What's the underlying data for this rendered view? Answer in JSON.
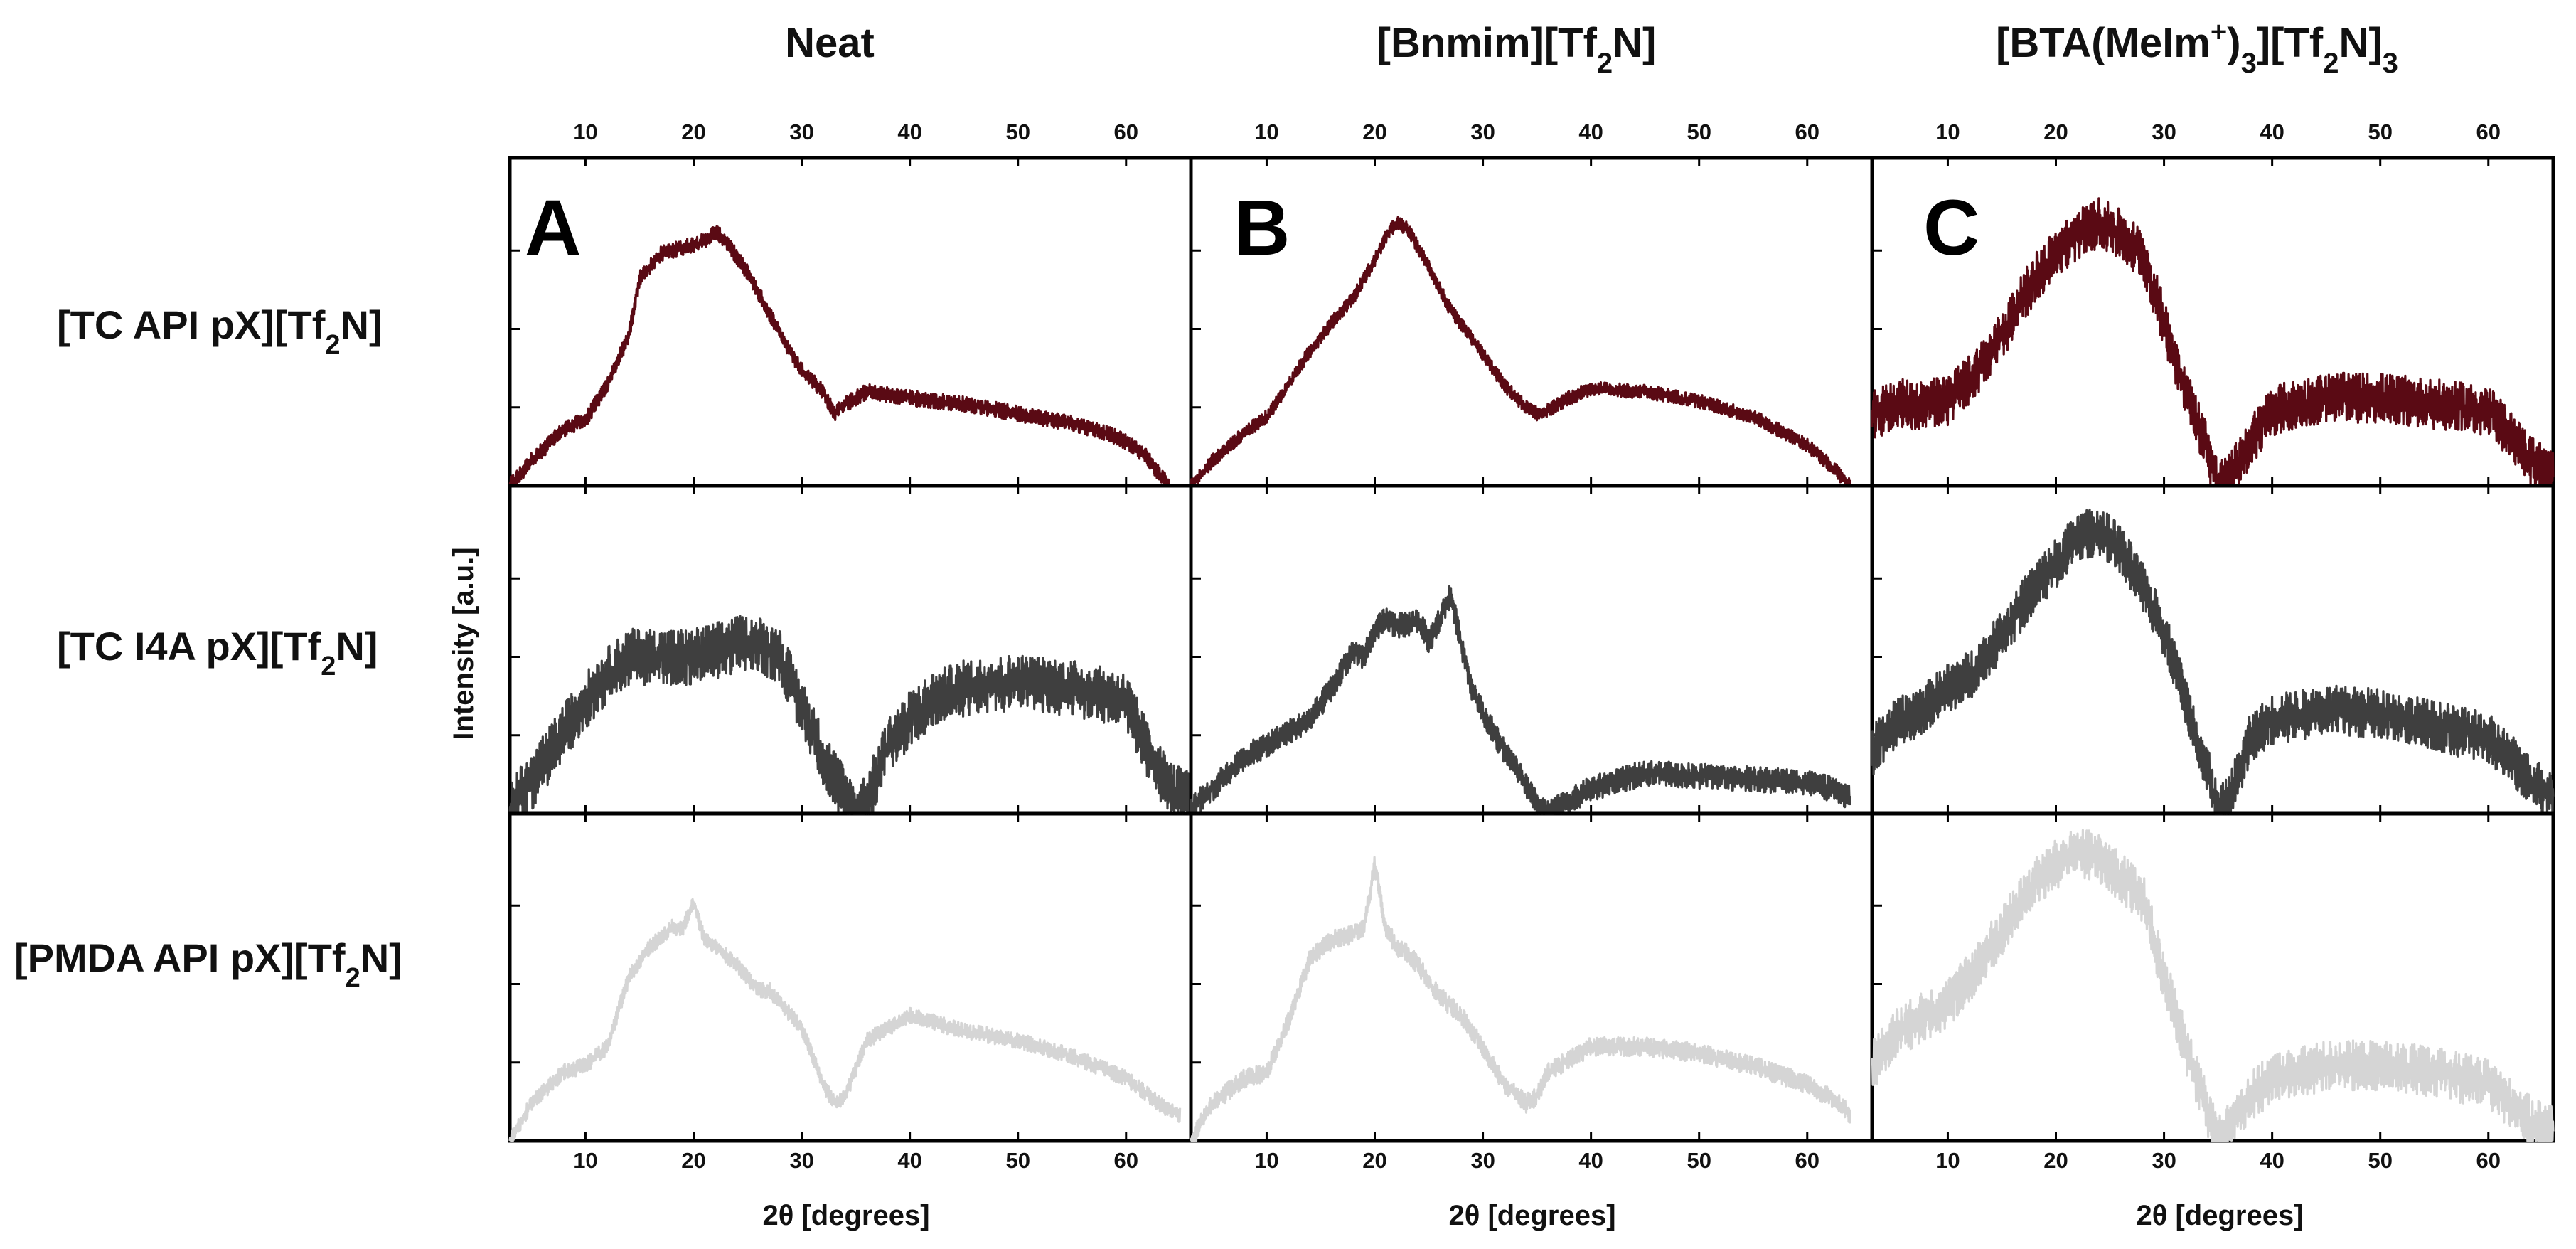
{
  "chart_data": {
    "type": "line",
    "layout": "3x3 small multiples, powder X-ray diffraction patterns",
    "columns": [
      {
        "title": "Neat",
        "panel_letter": "A"
      },
      {
        "title_parts": [
          "[Bnmim][Tf",
          "2",
          "N]"
        ],
        "panel_letter": "B"
      },
      {
        "title_parts": [
          "[BTA(MeIm",
          "+",
          ")",
          "3",
          "][Tf",
          "2",
          "N]",
          "3"
        ],
        "panel_letter": "C"
      }
    ],
    "rows": [
      {
        "label_parts": [
          "[TC API pX][Tf",
          "2",
          "N]"
        ],
        "color": "#5a0a14"
      },
      {
        "label_parts": [
          "[TC I4A pX][Tf",
          "2",
          "N]"
        ],
        "color": "#3f3f3f"
      },
      {
        "label_parts": [
          "[PMDA API pX][Tf",
          "2",
          "N]"
        ],
        "color": "#d5d5d5"
      }
    ],
    "xlabel": "2θ [degrees]",
    "ylabel": "Intensity [a.u.]",
    "xlim": [
      3,
      66
    ],
    "ylim": [
      0,
      100
    ],
    "xticks": [
      "10",
      "20",
      "30",
      "40",
      "50",
      "60"
    ],
    "xtick_values": [
      10,
      20,
      30,
      40,
      50,
      60
    ],
    "ytick_values": [
      25,
      50,
      75
    ],
    "panels": [
      {
        "row": 0,
        "col": 0,
        "color": "#5a0a14",
        "noise": 2.5,
        "x": [
          3,
          5,
          8,
          10,
          12,
          14,
          15,
          17,
          19,
          21,
          22,
          23,
          25,
          27,
          29,
          30,
          32,
          33,
          34,
          36,
          40,
          45,
          50,
          55,
          58,
          60,
          62,
          63,
          64
        ],
        "y": [
          0,
          8,
          18,
          21,
          32,
          48,
          66,
          74,
          76,
          78,
          81,
          78,
          68,
          55,
          42,
          37,
          30,
          23,
          26,
          30,
          28,
          26,
          23,
          20,
          17,
          14,
          9,
          4,
          0
        ]
      },
      {
        "row": 0,
        "col": 1,
        "color": "#5a0a14",
        "noise": 2.2,
        "x": [
          3,
          5,
          8,
          10,
          12,
          14,
          16,
          18,
          20,
          21,
          22,
          23,
          25,
          27,
          30,
          32,
          34,
          35,
          36,
          38,
          40,
          45,
          50,
          55,
          60,
          62,
          64
        ],
        "y": [
          0,
          8,
          17,
          22,
          32,
          43,
          52,
          60,
          72,
          79,
          84,
          82,
          70,
          56,
          42,
          32,
          25,
          23,
          24,
          28,
          31,
          30,
          27,
          22,
          13,
          7,
          0
        ]
      },
      {
        "row": 0,
        "col": 2,
        "color": "#5a0a14",
        "noise": 8,
        "x": [
          3,
          5,
          8,
          10,
          12,
          14,
          16,
          18,
          20,
          22,
          24,
          26,
          28,
          30,
          32,
          34,
          35,
          36,
          38,
          40,
          45,
          50,
          55,
          60,
          62,
          64,
          66
        ],
        "y": [
          22,
          26,
          26,
          27,
          34,
          42,
          54,
          66,
          74,
          80,
          84,
          80,
          74,
          52,
          30,
          12,
          0,
          2,
          14,
          24,
          28,
          28,
          26,
          24,
          16,
          8,
          3
        ]
      },
      {
        "row": 1,
        "col": 0,
        "color": "#3f3f3f",
        "noise": 9,
        "x": [
          3,
          5,
          8,
          10,
          12,
          14,
          16,
          18,
          20,
          22,
          24,
          26,
          28,
          30,
          32,
          34,
          35,
          36,
          38,
          40,
          42,
          45,
          50,
          55,
          60,
          62,
          64,
          66
        ],
        "y": [
          2,
          10,
          26,
          36,
          44,
          50,
          50,
          50,
          50,
          52,
          54,
          54,
          50,
          34,
          18,
          6,
          0,
          4,
          22,
          30,
          36,
          40,
          42,
          40,
          36,
          20,
          8,
          4
        ]
      },
      {
        "row": 1,
        "col": 1,
        "color": "#3f3f3f",
        "noise": 4,
        "x": [
          3,
          5,
          8,
          10,
          12,
          14,
          16,
          17,
          18,
          19,
          20,
          21,
          22,
          23,
          24,
          25,
          26,
          27,
          28,
          29,
          30,
          32,
          34,
          35,
          36,
          38,
          40,
          45,
          50,
          55,
          60,
          62,
          64
        ],
        "y": [
          2,
          8,
          18,
          22,
          26,
          30,
          40,
          46,
          52,
          50,
          58,
          62,
          60,
          60,
          62,
          55,
          62,
          70,
          54,
          40,
          32,
          20,
          9,
          3,
          0,
          4,
          8,
          13,
          12,
          11,
          10,
          8,
          5
        ]
      },
      {
        "row": 1,
        "col": 2,
        "color": "#3f3f3f",
        "noise": 8,
        "x": [
          3,
          5,
          8,
          10,
          12,
          14,
          16,
          18,
          20,
          22,
          24,
          26,
          28,
          30,
          32,
          34,
          35,
          36,
          38,
          40,
          45,
          50,
          55,
          60,
          62,
          64,
          66
        ],
        "y": [
          20,
          28,
          34,
          40,
          44,
          52,
          62,
          72,
          80,
          88,
          90,
          84,
          72,
          58,
          36,
          14,
          0,
          4,
          24,
          30,
          33,
          32,
          28,
          24,
          18,
          10,
          6
        ]
      },
      {
        "row": 2,
        "col": 0,
        "color": "#d5d5d5",
        "noise": 2.5,
        "x": [
          3,
          5,
          8,
          10,
          12,
          14,
          16,
          18,
          19,
          20,
          21,
          22,
          24,
          26,
          27,
          28,
          30,
          32,
          33,
          34,
          36,
          38,
          40,
          45,
          50,
          55,
          60,
          63,
          65
        ],
        "y": [
          0,
          12,
          22,
          24,
          30,
          52,
          62,
          68,
          68,
          76,
          64,
          62,
          56,
          48,
          48,
          44,
          36,
          18,
          12,
          14,
          32,
          36,
          40,
          35,
          32,
          27,
          20,
          12,
          8
        ]
      },
      {
        "row": 2,
        "col": 1,
        "color": "#d5d5d5",
        "noise": 3,
        "x": [
          3,
          5,
          8,
          10,
          12,
          14,
          16,
          18,
          19,
          20,
          21,
          22,
          23,
          24,
          26,
          28,
          30,
          32,
          34,
          35,
          36,
          38,
          40,
          45,
          50,
          55,
          60,
          63,
          64
        ],
        "y": [
          0,
          12,
          20,
          22,
          38,
          58,
          64,
          66,
          68,
          88,
          68,
          62,
          60,
          56,
          46,
          40,
          30,
          18,
          12,
          14,
          22,
          26,
          30,
          30,
          28,
          24,
          18,
          12,
          8
        ]
      },
      {
        "row": 2,
        "col": 2,
        "color": "#d5d5d5",
        "noise": 8,
        "x": [
          3,
          5,
          8,
          10,
          12,
          14,
          16,
          18,
          20,
          22,
          24,
          26,
          28,
          30,
          32,
          34,
          35,
          36,
          38,
          40,
          45,
          50,
          55,
          60,
          62,
          64,
          66
        ],
        "y": [
          24,
          34,
          40,
          44,
          52,
          62,
          72,
          82,
          88,
          92,
          90,
          84,
          78,
          52,
          30,
          10,
          0,
          4,
          14,
          20,
          24,
          24,
          22,
          18,
          12,
          6,
          4
        ]
      }
    ]
  }
}
